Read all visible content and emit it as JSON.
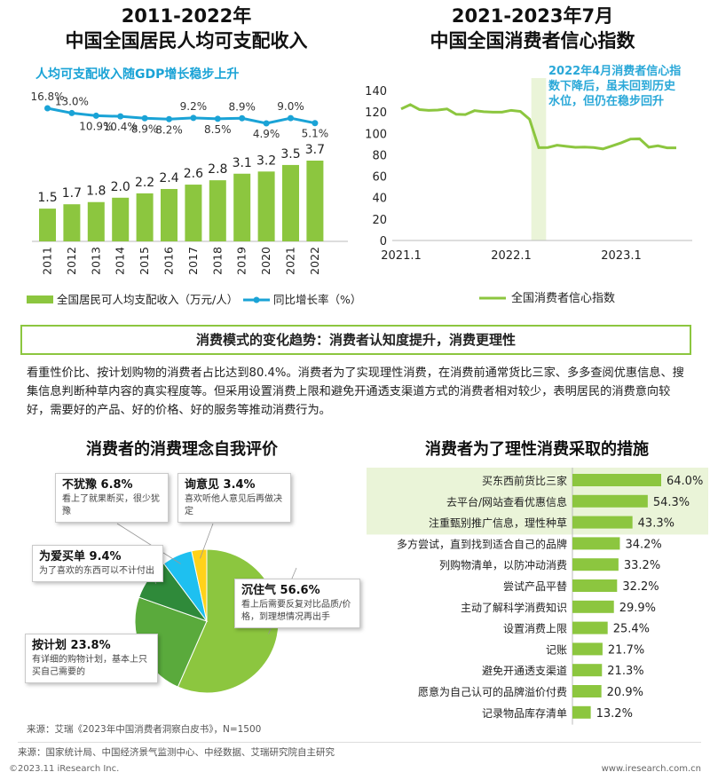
{
  "left_chart": {
    "title_line1": "2011-2022年",
    "title_line2": "中国全国居民人均可支配收入",
    "subtitle": "人均可支配收入随GDP增长稳步上升",
    "legend_bar": "全国居民可人均支配收入（万元/人）",
    "legend_line": "同比增长率（%）"
  },
  "right_chart": {
    "title_line1": "2021-2023年7月",
    "title_line2": "中国全国消费者信心指数",
    "callout": "2022年4月消费者信心指数下降后，虽未回到历史水位，但仍在稳步回升",
    "legend": "全国消费者信心指数"
  },
  "banner": "消费模式的变化趋势：消费者认知度提升，消费更理性",
  "paragraph": "看重性价比、按计划购物的消费者占比达到80.4%。消费者为了实现理性消费，在消费前通常货比三家、多多查阅优惠信息、搜集信息判断种草内容的真实程度等。但采用设置消费上限和避免开通透支渠道方式的消费者相对较少，表明居民的消费意向较好，需要好的产品、好的价格、好的服务等推动消费行为。",
  "pie_section": {
    "title": "消费者的消费理念自我评价",
    "source": "来源：艾瑞《2023年中国消费者洞察白皮书》，N=1500"
  },
  "bar_section": {
    "title": "消费者为了理性消费采取的措施"
  },
  "colors": {
    "green": "#8cc63f",
    "blue": "#1aa3d6",
    "mid_green": "#5aaa3c",
    "dark_green": "#2f8a3a",
    "cyan": "#1ec0f0",
    "yellow": "#ffd21a",
    "highlight": "#eaf4d8"
  },
  "source_line": "来源：国家统计局、中国经济景气监测中心、中经数据、艾瑞研究院自主研究",
  "footer_left": "©2023.11 iResearch Inc.",
  "footer_right": "www.iresearch.com.cn",
  "chart_data": [
    {
      "type": "bar",
      "categories": [
        "2011",
        "2012",
        "2013",
        "2014",
        "2015",
        "2016",
        "2017",
        "2018",
        "2019",
        "2020",
        "2021",
        "2022"
      ],
      "series": [
        {
          "name": "全国居民可人均支配收入（万元/人）",
          "type": "bar",
          "values": [
            1.5,
            1.7,
            1.8,
            2.0,
            2.2,
            2.4,
            2.6,
            2.8,
            3.1,
            3.2,
            3.5,
            3.7
          ],
          "labels": [
            "1.5",
            "1.7",
            "1.8",
            "2.0",
            "2.2",
            "2.4",
            "2.6",
            "2.8",
            "3.1",
            "3.2",
            "3.5",
            "3.7"
          ]
        },
        {
          "name": "同比增长率（%）",
          "type": "line",
          "values": [
            16.8,
            13.0,
            10.9,
            10.4,
            8.9,
            8.2,
            9.2,
            8.5,
            8.9,
            4.9,
            9.0,
            5.1
          ],
          "labels": [
            "16.8%",
            "13.0%",
            "10.9%",
            "10.4%",
            "8.9%",
            "8.2%",
            "9.2%",
            "8.5%",
            "8.9%",
            "4.9%",
            "9.0%",
            "5.1%"
          ]
        }
      ]
    },
    {
      "type": "line",
      "x_tick_labels": [
        "2021.1",
        "2022.1",
        "2023.1"
      ],
      "y_ticks": [
        "0",
        "20",
        "40",
        "60",
        "80",
        "100",
        "120",
        "140"
      ],
      "ylim": [
        0,
        140
      ],
      "series": [
        {
          "name": "全国消费者信心指数",
          "x": [
            "2021-01",
            "2021-02",
            "2021-03",
            "2021-04",
            "2021-05",
            "2021-06",
            "2021-07",
            "2021-08",
            "2021-09",
            "2021-10",
            "2021-11",
            "2021-12",
            "2022-01",
            "2022-02",
            "2022-03",
            "2022-04",
            "2022-05",
            "2022-06",
            "2022-07",
            "2022-08",
            "2022-09",
            "2022-10",
            "2022-11",
            "2022-12",
            "2023-01",
            "2023-02",
            "2023-03",
            "2023-04",
            "2023-05",
            "2023-06",
            "2023-07"
          ],
          "values": [
            122.8,
            126.8,
            122.2,
            121.5,
            121.8,
            122.8,
            117.8,
            117.5,
            121.2,
            120.2,
            119.8,
            119.8,
            121.5,
            120.5,
            113.2,
            86.7,
            86.8,
            88.9,
            87.9,
            87.0,
            87.2,
            86.8,
            85.5,
            88.3,
            91.2,
            94.7,
            94.9,
            87.1,
            88.4,
            86.5,
            86.5
          ]
        }
      ]
    },
    {
      "type": "pie",
      "slices": [
        {
          "name": "沉住气",
          "value": 56.6,
          "label": "56.6%",
          "desc": "看上后需要反复对比品质/价格，到理想情况再出手"
        },
        {
          "name": "按计划",
          "value": 23.8,
          "label": "23.8%",
          "desc": "有详细的购物计划，基本上只买自己需要的"
        },
        {
          "name": "为爱买单",
          "value": 9.4,
          "label": "9.4%",
          "desc": "为了喜欢的东西可以不计付出"
        },
        {
          "name": "不犹豫",
          "value": 6.8,
          "label": "6.8%",
          "desc": "看上了就果断买，很少犹豫"
        },
        {
          "name": "询意见",
          "value": 3.4,
          "label": "3.4%",
          "desc": "喜欢听他人意见后再做决定"
        }
      ]
    },
    {
      "type": "bar",
      "orientation": "horizontal",
      "categories": [
        "买东西前货比三家",
        "去平台/网站查看优惠信息",
        "注重甄别推广信息，理性种草",
        "多方尝试，直到找到适合自己的品牌",
        "列购物清单，以防冲动消费",
        "尝试产品平替",
        "主动了解科学消费知识",
        "设置消费上限",
        "记账",
        "避免开通透支渠道",
        "愿意为自己认可的品牌溢价付费",
        "记录物品库存清单"
      ],
      "values": [
        64.0,
        54.3,
        43.3,
        34.2,
        33.2,
        32.2,
        29.9,
        25.4,
        21.7,
        21.3,
        20.9,
        13.2
      ],
      "labels": [
        "64.0%",
        "54.3%",
        "43.3%",
        "34.2%",
        "33.2%",
        "32.2%",
        "29.9%",
        "25.4%",
        "21.7%",
        "21.3%",
        "20.9%",
        "13.2%"
      ],
      "highlighted": [
        0,
        1,
        2
      ]
    }
  ]
}
